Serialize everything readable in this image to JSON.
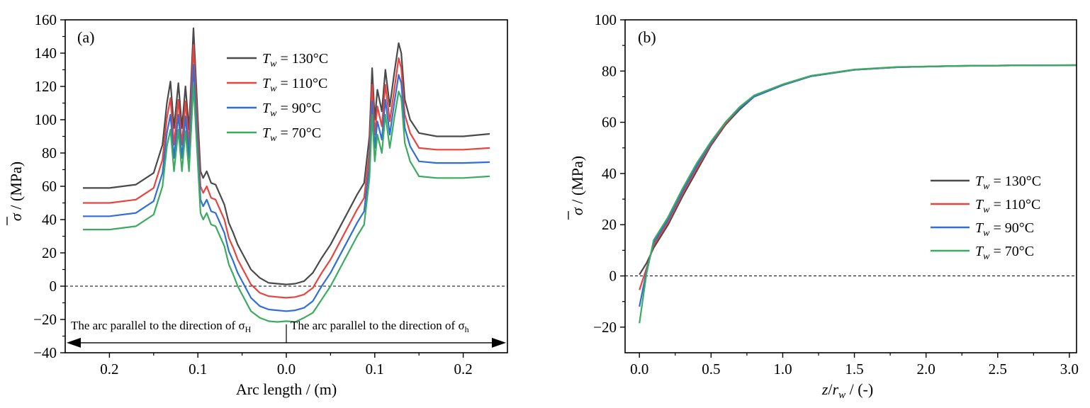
{
  "colors": {
    "t130": "#4a4a4a",
    "t110": "#e8433f",
    "t90": "#2f6fd6",
    "t70": "#3bab5e",
    "axis": "#000000"
  },
  "legend": [
    {
      "key": "t130",
      "prefix": "T",
      "sub": "w",
      "rest": " = 130°C"
    },
    {
      "key": "t110",
      "prefix": "T",
      "sub": "w",
      "rest": " = 110°C"
    },
    {
      "key": "t90",
      "prefix": "T",
      "sub": "w",
      "rest": " = 90°C"
    },
    {
      "key": "t70",
      "prefix": "T",
      "sub": "w",
      "rest": " = 70°C"
    }
  ],
  "chart_data": [
    {
      "id": "a",
      "type": "line",
      "panel_label": "(a)",
      "xlabel": "Arc length / (m)",
      "ylabel_sym": "σ",
      "ylabel_rest": " / (MPa)",
      "xlim": [
        -0.25,
        0.25
      ],
      "ylim": [
        -40,
        160
      ],
      "xticks": [
        -0.2,
        -0.1,
        0.0,
        0.1,
        0.2
      ],
      "xtick_labels": [
        "0.2",
        "0.1",
        "0.0",
        "0.1",
        "0.2"
      ],
      "yticks": [
        -40,
        -20,
        0,
        20,
        40,
        60,
        80,
        100,
        120,
        140,
        160
      ],
      "ytick_labels": [
        "−40",
        "−20",
        "0",
        "20",
        "40",
        "60",
        "80",
        "100",
        "120",
        "140",
        "160"
      ],
      "zero_line": true,
      "legend_position": "top-center",
      "annotation_left": "The arc parallel to the direction of σ",
      "annotation_left_sub": "H",
      "annotation_right": "The arc parallel to the direction of σ",
      "annotation_right_sub": "h",
      "annotation_arrow_y": -34,
      "series": [
        {
          "name": "T_w = 130°C",
          "key": "t130",
          "x": [
            -0.23,
            -0.2,
            -0.17,
            -0.15,
            -0.14,
            -0.135,
            -0.131,
            -0.127,
            -0.122,
            -0.118,
            -0.114,
            -0.11,
            -0.105,
            -0.1,
            -0.097,
            -0.094,
            -0.09,
            -0.085,
            -0.08,
            -0.075,
            -0.07,
            -0.065,
            -0.06,
            -0.055,
            -0.05,
            -0.04,
            -0.03,
            -0.02,
            -0.01,
            0.0,
            0.01,
            0.02,
            0.03,
            0.04,
            0.05,
            0.06,
            0.07,
            0.08,
            0.088,
            0.094,
            0.097,
            0.1,
            0.103,
            0.108,
            0.112,
            0.117,
            0.122,
            0.127,
            0.13,
            0.134,
            0.14,
            0.15,
            0.17,
            0.2,
            0.23
          ],
          "y": [
            59,
            59,
            61,
            68,
            85,
            110,
            123,
            95,
            122,
            95,
            120,
            94,
            155,
            100,
            69,
            65,
            69,
            62,
            61,
            55,
            49,
            38,
            32,
            25,
            20,
            10,
            5,
            2,
            1.5,
            1.0,
            1.5,
            3,
            8,
            17,
            25,
            35,
            45,
            55,
            62,
            90,
            131,
            100,
            118,
            105,
            130,
            108,
            128,
            146,
            140,
            112,
            100,
            92,
            90,
            90,
            91.5
          ]
        },
        {
          "name": "T_w = 110°C",
          "key": "t110",
          "x": [
            -0.23,
            -0.2,
            -0.17,
            -0.15,
            -0.14,
            -0.135,
            -0.131,
            -0.127,
            -0.122,
            -0.118,
            -0.114,
            -0.11,
            -0.105,
            -0.1,
            -0.097,
            -0.094,
            -0.09,
            -0.085,
            -0.08,
            -0.075,
            -0.07,
            -0.065,
            -0.06,
            -0.055,
            -0.05,
            -0.04,
            -0.03,
            -0.02,
            -0.01,
            0.0,
            0.01,
            0.02,
            0.03,
            0.04,
            0.05,
            0.06,
            0.07,
            0.08,
            0.088,
            0.094,
            0.097,
            0.1,
            0.103,
            0.108,
            0.112,
            0.117,
            0.122,
            0.127,
            0.13,
            0.134,
            0.14,
            0.15,
            0.17,
            0.2,
            0.23
          ],
          "y": [
            50,
            50,
            52,
            59,
            76,
            101,
            113,
            85,
            112,
            85,
            111,
            85,
            145,
            90,
            60,
            56,
            60,
            53,
            52,
            46,
            40,
            29,
            23,
            16,
            11,
            1,
            -4,
            -6,
            -6.5,
            -7,
            -6.5,
            -5,
            -1,
            8,
            16,
            26,
            36,
            46,
            53,
            81,
            121,
            91,
            108,
            96,
            121,
            99,
            118,
            137,
            131,
            103,
            92,
            83,
            82,
            82,
            83
          ]
        },
        {
          "name": "T_w = 90°C",
          "key": "t90",
          "x": [
            -0.23,
            -0.2,
            -0.17,
            -0.15,
            -0.14,
            -0.135,
            -0.131,
            -0.127,
            -0.122,
            -0.118,
            -0.114,
            -0.11,
            -0.105,
            -0.1,
            -0.097,
            -0.094,
            -0.09,
            -0.085,
            -0.08,
            -0.075,
            -0.07,
            -0.065,
            -0.06,
            -0.055,
            -0.05,
            -0.04,
            -0.03,
            -0.02,
            -0.01,
            0.0,
            0.01,
            0.02,
            0.03,
            0.04,
            0.05,
            0.06,
            0.07,
            0.08,
            0.088,
            0.094,
            0.097,
            0.1,
            0.103,
            0.108,
            0.112,
            0.117,
            0.122,
            0.127,
            0.13,
            0.134,
            0.14,
            0.15,
            0.17,
            0.2,
            0.23
          ],
          "y": [
            42,
            42,
            44,
            51,
            68,
            92,
            103,
            77,
            103,
            77,
            102,
            77,
            133,
            81,
            52,
            48,
            52,
            45,
            44,
            38,
            32,
            21,
            15,
            8,
            3,
            -7,
            -12,
            -14,
            -14.5,
            -15,
            -14.5,
            -13,
            -9,
            0,
            8,
            18,
            28,
            38,
            45,
            73,
            111,
            83,
            99,
            88,
            112,
            91,
            110,
            127,
            122,
            95,
            84,
            75,
            74,
            74,
            74.5
          ]
        },
        {
          "name": "T_w = 70°C",
          "key": "t70",
          "x": [
            -0.23,
            -0.2,
            -0.17,
            -0.15,
            -0.14,
            -0.135,
            -0.131,
            -0.127,
            -0.122,
            -0.118,
            -0.114,
            -0.11,
            -0.105,
            -0.1,
            -0.097,
            -0.094,
            -0.09,
            -0.085,
            -0.08,
            -0.075,
            -0.07,
            -0.065,
            -0.06,
            -0.055,
            -0.05,
            -0.04,
            -0.03,
            -0.02,
            -0.01,
            0.0,
            0.01,
            0.02,
            0.03,
            0.04,
            0.05,
            0.06,
            0.07,
            0.08,
            0.088,
            0.094,
            0.097,
            0.1,
            0.103,
            0.108,
            0.112,
            0.117,
            0.122,
            0.127,
            0.13,
            0.134,
            0.14,
            0.15,
            0.17,
            0.2,
            0.23
          ],
          "y": [
            34,
            34,
            36,
            43,
            60,
            84,
            94,
            69,
            94,
            69,
            93,
            69,
            121,
            73,
            44,
            40,
            44,
            37,
            36,
            30,
            24,
            13,
            7,
            0,
            -5,
            -15,
            -19,
            -21,
            -21.5,
            -21,
            -21.5,
            -19,
            -16,
            -8,
            0,
            10,
            20,
            30,
            37,
            65,
            103,
            75,
            91,
            80,
            103,
            83,
            101,
            117,
            113,
            86,
            75,
            66,
            65,
            65,
            66
          ]
        }
      ]
    },
    {
      "id": "b",
      "type": "line",
      "panel_label": "(b)",
      "xlabel_z": "z",
      "xlabel_r": "r",
      "xlabel_sub": "w",
      "xlabel_rest": " / (-)",
      "ylabel_sym": "σ",
      "ylabel_rest": " / (MPa)",
      "xlim": [
        -0.1,
        3.05
      ],
      "ylim": [
        -30,
        100
      ],
      "xticks": [
        0.0,
        0.5,
        1.0,
        1.5,
        2.0,
        2.5,
        3.0
      ],
      "xtick_labels": [
        "0.0",
        "0.5",
        "1.0",
        "1.5",
        "2.0",
        "2.5",
        "3.0"
      ],
      "yticks": [
        -20,
        0,
        20,
        40,
        60,
        80,
        100
      ],
      "ytick_labels": [
        "−20",
        "0",
        "20",
        "40",
        "60",
        "80",
        "100"
      ],
      "zero_line": true,
      "legend_position": "center-right",
      "series": [
        {
          "name": "T_w = 130°C",
          "key": "t130",
          "x": [
            0,
            0.05,
            0.1,
            0.2,
            0.3,
            0.4,
            0.5,
            0.6,
            0.7,
            0.8,
            1.0,
            1.2,
            1.5,
            1.8,
            2.2,
            2.6,
            3.05
          ],
          "y": [
            0.5,
            5,
            11,
            20,
            31,
            41,
            51,
            59,
            65,
            70,
            74.5,
            78,
            80.5,
            81.5,
            82,
            82.2,
            82.3
          ]
        },
        {
          "name": "T_w = 110°C",
          "key": "t110",
          "x": [
            0,
            0.05,
            0.1,
            0.2,
            0.3,
            0.4,
            0.5,
            0.6,
            0.7,
            0.8,
            1.0,
            1.2,
            1.5,
            1.8,
            2.2,
            2.6,
            3.05
          ],
          "y": [
            -5.5,
            3,
            12,
            21,
            32,
            42,
            51.5,
            59.5,
            65.5,
            70,
            74.5,
            78,
            80.5,
            81.5,
            82,
            82.2,
            82.3
          ]
        },
        {
          "name": "T_w = 90°C",
          "key": "t90",
          "x": [
            0,
            0.05,
            0.1,
            0.2,
            0.3,
            0.4,
            0.5,
            0.6,
            0.7,
            0.8,
            1.0,
            1.2,
            1.5,
            1.8,
            2.2,
            2.6,
            3.05
          ],
          "y": [
            -12,
            2,
            13,
            22,
            33,
            43,
            52,
            60,
            65.5,
            70,
            74.5,
            78,
            80.5,
            81.5,
            82,
            82.2,
            82.3
          ]
        },
        {
          "name": "T_w = 70°C",
          "key": "t70",
          "x": [
            0,
            0.05,
            0.1,
            0.2,
            0.3,
            0.4,
            0.5,
            0.6,
            0.7,
            0.8,
            1.0,
            1.2,
            1.5,
            1.8,
            2.2,
            2.6,
            3.05
          ],
          "y": [
            -18.5,
            1,
            14,
            23,
            34,
            44,
            52.5,
            60,
            66,
            70.5,
            74.8,
            78.2,
            80.6,
            81.6,
            82,
            82.2,
            82.3
          ]
        }
      ]
    }
  ]
}
